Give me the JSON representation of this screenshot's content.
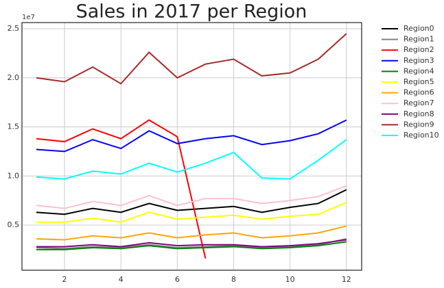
{
  "chart_data": {
    "type": "line",
    "title": "Sales in 2017 per Region",
    "y_offset_label": "1e7",
    "x": [
      1,
      2,
      3,
      4,
      5,
      6,
      7,
      8,
      9,
      10,
      11,
      12
    ],
    "xlim": [
      0.49,
      12.54
    ],
    "xticks": [
      2,
      4,
      6,
      8,
      10,
      12
    ],
    "ylim": [
      0.04,
      2.563
    ],
    "yticks": [
      0.5,
      {
        "value": 1,
        "label": "1.0"
      },
      1.5,
      {
        "value": 2,
        "label": "2.0"
      },
      2.5
    ],
    "grid": true,
    "legend": "outside-right",
    "series": [
      {
        "name": "Region0",
        "color": "#000000",
        "values": [
          0.63,
          0.61,
          0.67,
          0.63,
          0.72,
          0.65,
          0.67,
          0.69,
          0.63,
          0.68,
          0.72,
          0.86
        ]
      },
      {
        "name": "Region1",
        "color": "#808080",
        "values": [
          0.27,
          0.26,
          0.28,
          0.27,
          0.3,
          0.27,
          0.28,
          0.29,
          0.27,
          0.28,
          0.3,
          0.36
        ]
      },
      {
        "name": "Region2",
        "color": "#ff0000",
        "values": [
          1.38,
          1.35,
          1.48,
          1.38,
          1.57,
          1.4,
          0.16,
          null,
          null,
          null,
          null,
          null
        ]
      },
      {
        "name": "Region3",
        "color": "#0000ff",
        "values": [
          1.27,
          1.25,
          1.37,
          1.28,
          1.46,
          1.33,
          1.38,
          1.41,
          1.32,
          1.36,
          1.43,
          1.57
        ]
      },
      {
        "name": "Region4",
        "color": "#008000",
        "values": [
          0.25,
          0.25,
          0.27,
          0.26,
          0.29,
          0.26,
          0.27,
          0.28,
          0.26,
          0.27,
          0.29,
          0.33
        ]
      },
      {
        "name": "Region5",
        "color": "#ffff00",
        "values": [
          0.53,
          0.53,
          0.57,
          0.53,
          0.63,
          0.56,
          0.58,
          0.6,
          0.56,
          0.59,
          0.61,
          0.73
        ]
      },
      {
        "name": "Region6",
        "color": "#ffa500",
        "values": [
          0.36,
          0.35,
          0.39,
          0.37,
          0.42,
          0.37,
          0.4,
          0.42,
          0.37,
          0.39,
          0.42,
          0.49
        ]
      },
      {
        "name": "Region7",
        "color": "#ffc0cb",
        "values": [
          0.7,
          0.67,
          0.74,
          0.7,
          0.8,
          0.7,
          0.77,
          0.77,
          0.72,
          0.75,
          0.79,
          0.9
        ]
      },
      {
        "name": "Region8",
        "color": "#800080",
        "values": [
          0.28,
          0.28,
          0.3,
          0.28,
          0.32,
          0.29,
          0.3,
          0.3,
          0.28,
          0.29,
          0.31,
          0.35
        ]
      },
      {
        "name": "Region9",
        "color": "#a52a2a",
        "values": [
          2.0,
          1.96,
          2.11,
          1.94,
          2.26,
          2.0,
          2.14,
          2.19,
          2.02,
          2.05,
          2.19,
          2.45
        ]
      },
      {
        "name": "Region10",
        "color": "#00ffff",
        "values": [
          0.99,
          0.97,
          1.05,
          1.02,
          1.13,
          1.04,
          1.13,
          1.24,
          0.98,
          0.97,
          1.16,
          1.37
        ]
      }
    ]
  }
}
